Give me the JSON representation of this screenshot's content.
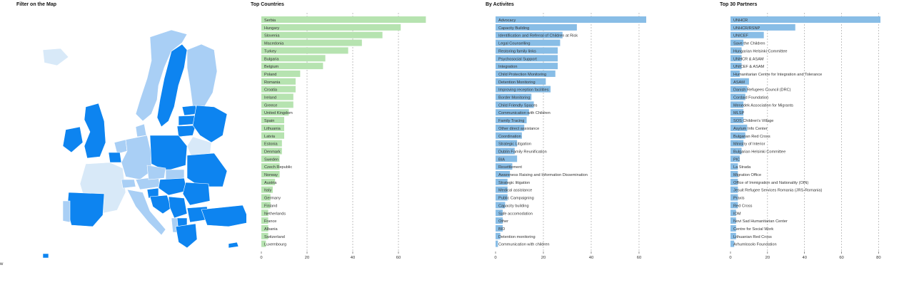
{
  "map": {
    "title": "Filter on the Map",
    "footer_text": "w",
    "colors": {
      "dark": "#0d84f0",
      "mid": "#4da3f0",
      "light": "#a9cff5",
      "pale": "#d8e9f8",
      "none": "#ffffff"
    }
  },
  "colors": {
    "countries_bar": "#b6e3b0",
    "activities_bar": "#88bde6",
    "partners_bar": "#88bde6"
  },
  "chart_data": [
    {
      "type": "bar",
      "title": "Top Countries",
      "orientation": "horizontal",
      "categories": [
        "Serbia",
        "Hungary",
        "Slovenia",
        "Macedonia",
        "Turkey",
        "Bulgaria",
        "Belgium",
        "Poland",
        "Romania",
        "Croatia",
        "Ireland",
        "Greece",
        "United Kingdom",
        "Spain",
        "Lithuania",
        "Latvia",
        "Estonia",
        "Denmark",
        "Sweden",
        "Czech Republic",
        "Norway",
        "Austria",
        "Italy",
        "Germany",
        "Finland",
        "Netherlands",
        "France",
        "Albania",
        "Switzerland",
        "Luxembourg"
      ],
      "values": [
        72,
        61,
        53,
        44,
        38,
        28,
        27,
        17,
        15,
        15,
        14,
        14,
        12,
        10,
        10,
        10,
        9,
        9,
        8,
        8,
        8,
        6,
        5,
        4,
        4,
        3,
        3,
        3,
        3,
        2
      ],
      "xticks": [
        0,
        20,
        40,
        60
      ],
      "xlim": [
        0,
        80
      ]
    },
    {
      "type": "bar",
      "title": "By Activites",
      "orientation": "horizontal",
      "categories": [
        "Advocacy",
        "Capacity Building",
        "Identification and Referral of Children at Risk",
        "Legal Counselling",
        "Restoring family links",
        "Psychosocial Support",
        "Integration",
        "Child Protection Monitoring",
        "Detention Monitoring",
        "Improving reception facilities",
        "Border Monitoring",
        "Child Friendly Spaces",
        "Communication with Children",
        "Family Tracing",
        "Other direct assistance",
        "Coordination",
        "Strategic Litigation",
        "Dublin Family Reunification",
        "BIA",
        "Resettlement",
        "Awareness Raising and Information Dissemination",
        "Strategic litigation",
        "Medical assistance",
        "Public Campaigning",
        "Capacity building",
        "Safe accomodation",
        "Other",
        "BID",
        "Detention monitoring",
        "Communication with children"
      ],
      "values": [
        63,
        34,
        28,
        27,
        26,
        26,
        26,
        25,
        21,
        23,
        15,
        16,
        14,
        13,
        12,
        11,
        9,
        8,
        9,
        7,
        6,
        5,
        5,
        5,
        4,
        3,
        3,
        3,
        2,
        1
      ],
      "xticks": [
        0,
        20,
        40,
        60
      ],
      "xlim": [
        0,
        63
      ]
    },
    {
      "type": "bar",
      "title": "Top 30 Partners",
      "orientation": "horizontal",
      "categories": [
        "UNHCR",
        "UNHCR/RSNP",
        "UNICEF",
        "Save the Children",
        "Hungarian Helsinki Committee",
        "UNHCR & ASAM",
        "UNICEF & ASAM",
        "Humanitarian Centre for Integration and Tolerance",
        "ASAM",
        "Danish Refugees Council (DRC)",
        "Cordaid Foundation",
        "Menedek Association for Migrants",
        "MLSP",
        "SOS Children's Village",
        "Asylum Info Center",
        "Bulgarian Red Cross",
        "Ministry of Interior",
        "Bulgarian Helsinki Committee",
        "PIC",
        "La Strada",
        "Migration Office",
        "Office of Immigration and Nationality (OIN)",
        "Jesuit Refugee Services Romania (JRS-Romania)",
        "Praxis",
        "Red Cross",
        "IOM",
        "Novi Sad Humanitarian Center",
        "Centre for Social Work",
        "Lithuanian Red Cross",
        "Arhumlosolo Foundation"
      ],
      "values": [
        81,
        35,
        18,
        7,
        6,
        6,
        6,
        5,
        10,
        9,
        8,
        7,
        7,
        7,
        9,
        8,
        7,
        6,
        5,
        4,
        4,
        4,
        4,
        4,
        4,
        3,
        3,
        3,
        3,
        2
      ],
      "xticks": [
        0,
        20,
        40,
        60,
        80
      ],
      "xlim": [
        0,
        81
      ]
    }
  ]
}
